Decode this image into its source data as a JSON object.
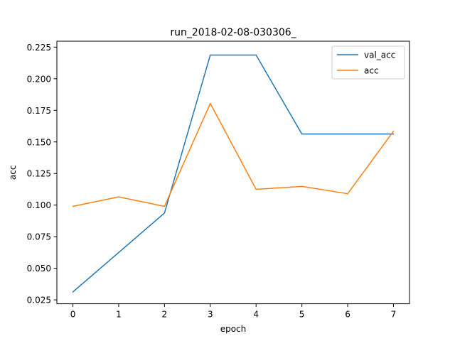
{
  "chart_data": {
    "type": "line",
    "title": "run_2018-02-08-030306_",
    "xlabel": "epoch",
    "ylabel": "acc",
    "x": [
      0,
      1,
      2,
      3,
      4,
      5,
      6,
      7
    ],
    "xlim": [
      -0.35,
      7.35
    ],
    "ylim": [
      0.0219,
      0.2297
    ],
    "xticks": [
      0,
      1,
      2,
      3,
      4,
      5,
      6,
      7
    ],
    "yticks": [
      0.025,
      0.05,
      0.075,
      0.1,
      0.125,
      0.15,
      0.175,
      0.2,
      0.225
    ],
    "ytick_labels": [
      "0.025",
      "0.050",
      "0.075",
      "0.100",
      "0.125",
      "0.150",
      "0.175",
      "0.200",
      "0.225"
    ],
    "grid": false,
    "legend_position": "top-right",
    "series": [
      {
        "name": "val_acc",
        "color": "#1f77b4",
        "values": [
          0.03125,
          0.0625,
          0.09375,
          0.21875,
          0.21875,
          0.15625,
          0.15625,
          0.15625
        ]
      },
      {
        "name": "acc",
        "color": "#ff7f0e",
        "values": [
          0.099,
          0.1065,
          0.099,
          0.1805,
          0.1125,
          0.1148,
          0.109,
          0.1585
        ]
      }
    ]
  }
}
